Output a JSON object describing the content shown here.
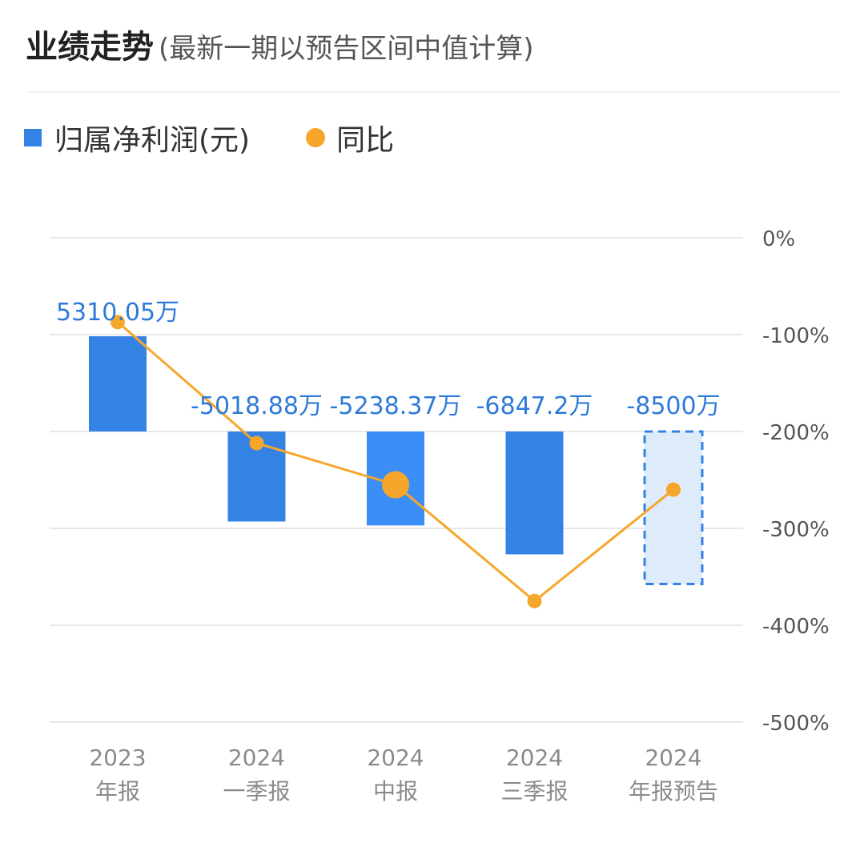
{
  "header": {
    "title": "业绩走势",
    "subtitle": "(最新一期以预告区间中值计算)"
  },
  "legend": {
    "bar_label": "归属净利润(元)",
    "line_label": "同比"
  },
  "colors": {
    "bar": "#3483e4",
    "bar_highlight": "#3a8ef5",
    "forecast_fill": "#deebfa",
    "forecast_border": "#3483e4",
    "line": "#f6a72b",
    "grid": "#e8e8e8",
    "label": "#2f7ad9"
  },
  "chart_data": {
    "type": "bar",
    "categories": [
      [
        "2023",
        "年报"
      ],
      [
        "2024",
        "一季报"
      ],
      [
        "2024",
        "中报"
      ],
      [
        "2024",
        "三季报"
      ],
      [
        "2024",
        "年报预告"
      ]
    ],
    "series": [
      {
        "name": "归属净利润(元)",
        "type": "bar",
        "values": [
          5310.05,
          -5018.88,
          -5238.37,
          -6847.2,
          -8500
        ],
        "labels": [
          "5310.05万",
          "-5018.88万",
          "-5238.37万",
          "-6847.2万",
          "-8500万"
        ],
        "forecast": [
          false,
          false,
          false,
          false,
          true
        ]
      },
      {
        "name": "同比",
        "type": "line",
        "values": [
          -87,
          -212,
          -255,
          -375,
          -260
        ]
      }
    ],
    "highlight_index": 2,
    "y_axis": {
      "position": "right",
      "ticks": [
        0,
        -100,
        -200,
        -300,
        -400,
        -500
      ],
      "tick_labels": [
        "0%",
        "-100%",
        "-200%",
        "-300%",
        "-400%",
        "-500%"
      ],
      "range": [
        -500,
        0
      ]
    },
    "bar_axis": {
      "zero_at_percent": -200,
      "units_per_100pct": 5400
    },
    "grid": true,
    "legend_position": "top-left"
  }
}
